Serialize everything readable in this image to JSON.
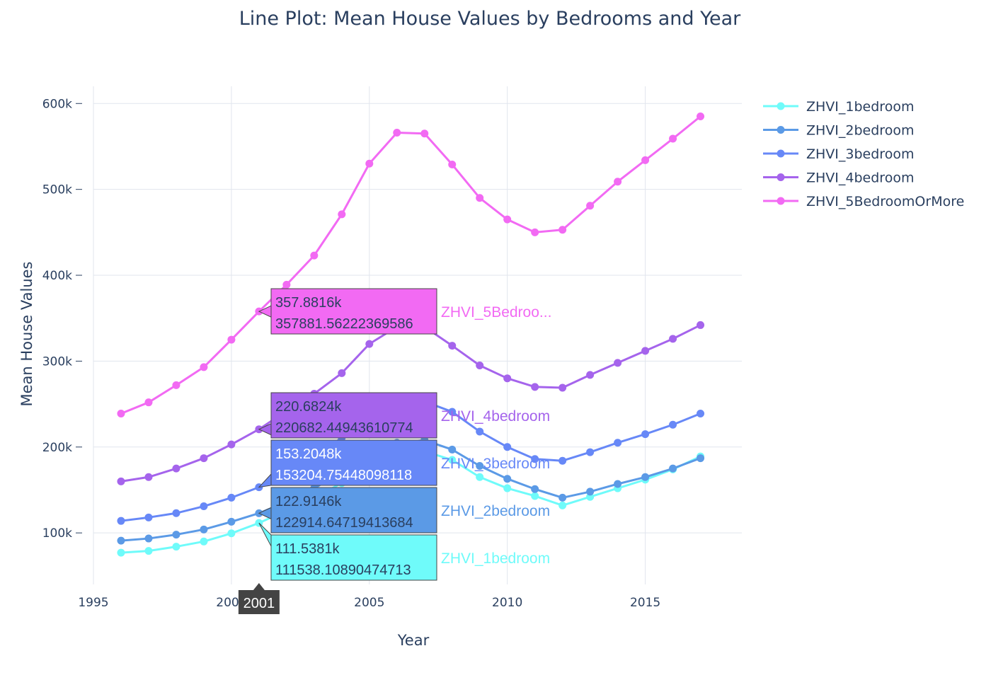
{
  "chart_data": {
    "type": "line",
    "title": "Line Plot: Mean House Values by Bedrooms and Year",
    "xlabel": "Year",
    "ylabel": "Mean House Values",
    "xlim": [
      1995,
      2018.5
    ],
    "ylim": [
      40000,
      620000
    ],
    "x_ticks": [
      1995,
      2000,
      2005,
      2010,
      2015
    ],
    "x_tick_labels": [
      "1995",
      "2000",
      "2005",
      "2010",
      "2015"
    ],
    "y_ticks": [
      100000,
      200000,
      300000,
      400000,
      500000,
      600000
    ],
    "y_tick_labels": [
      "100k",
      "200k",
      "300k",
      "400k",
      "500k",
      "600k"
    ],
    "grid": true,
    "legend_position": "top-right",
    "x": [
      1996,
      1997,
      1998,
      1999,
      2000,
      2001,
      2002,
      2003,
      2004,
      2005,
      2006,
      2007,
      2008,
      2009,
      2010,
      2011,
      2012,
      2013,
      2014,
      2015,
      2016,
      2017
    ],
    "series": [
      {
        "name": "ZHVI_1bedroom",
        "color": "#6ffbfa",
        "values": [
          77000,
          79000,
          84000,
          90000,
          99500,
          111538,
          126000,
          141000,
          158000,
          178000,
          193000,
          195000,
          185000,
          165000,
          152000,
          143000,
          132000,
          142000,
          152000,
          162000,
          174000,
          189000
        ]
      },
      {
        "name": "ZHVI_2bedroom",
        "color": "#5b9ae6",
        "values": [
          91000,
          93500,
          98000,
          104000,
          113000,
          122915,
          136000,
          152000,
          170000,
          190000,
          205000,
          208000,
          197000,
          178000,
          163000,
          151000,
          141000,
          148000,
          157000,
          165000,
          175000,
          187000
        ]
      },
      {
        "name": "ZHVI_3bedroom",
        "color": "#6788f7",
        "values": [
          114000,
          118000,
          123000,
          131000,
          141000,
          153205,
          170000,
          188000,
          211000,
          236000,
          252000,
          253000,
          241000,
          218000,
          200000,
          186000,
          184000,
          194000,
          205000,
          215000,
          226000,
          239000
        ]
      },
      {
        "name": "ZHVI_4bedroom",
        "color": "#a564ec",
        "values": [
          160000,
          165000,
          175000,
          187000,
          203000,
          220682,
          242000,
          262000,
          286000,
          320000,
          340000,
          340000,
          318000,
          295000,
          280000,
          270000,
          269000,
          284000,
          298000,
          312000,
          326000,
          342000
        ]
      },
      {
        "name": "ZHVI_5BedroomOrMore",
        "color": "#f26af3",
        "values": [
          239000,
          252000,
          272000,
          293000,
          325000,
          357882,
          389000,
          423000,
          471000,
          530000,
          566000,
          565000,
          529000,
          490000,
          465000,
          450000,
          453000,
          481000,
          509000,
          534000,
          559000,
          585000
        ]
      }
    ],
    "hover": {
      "x_label": "2001",
      "items": [
        {
          "short": "357.8816k",
          "full": "357881.56222369586",
          "name": "ZHVI_5Bedroo...",
          "color": "#f26af3",
          "text_color": "#2a3f5f",
          "series": 4
        },
        {
          "short": "220.6824k",
          "full": "220682.44943610774",
          "name": "ZHVI_4bedroom",
          "color": "#a564ec",
          "text_color": "#2a3f5f",
          "series": 3
        },
        {
          "short": "153.2048k",
          "full": "153204.75448098118",
          "name": "ZHVI_3bedroom",
          "color": "#6788f7",
          "text_color": "#ffffff",
          "series": 2
        },
        {
          "short": "122.9146k",
          "full": "122914.64719413684",
          "name": "ZHVI_2bedroom",
          "color": "#5b9ae6",
          "text_color": "#2a3f5f",
          "series": 1
        },
        {
          "short": "111.5381k",
          "full": "111538.10890474713",
          "name": "ZHVI_1bedroom",
          "color": "#6ffbfa",
          "text_color": "#2a3f5f",
          "series": 0
        }
      ]
    }
  }
}
